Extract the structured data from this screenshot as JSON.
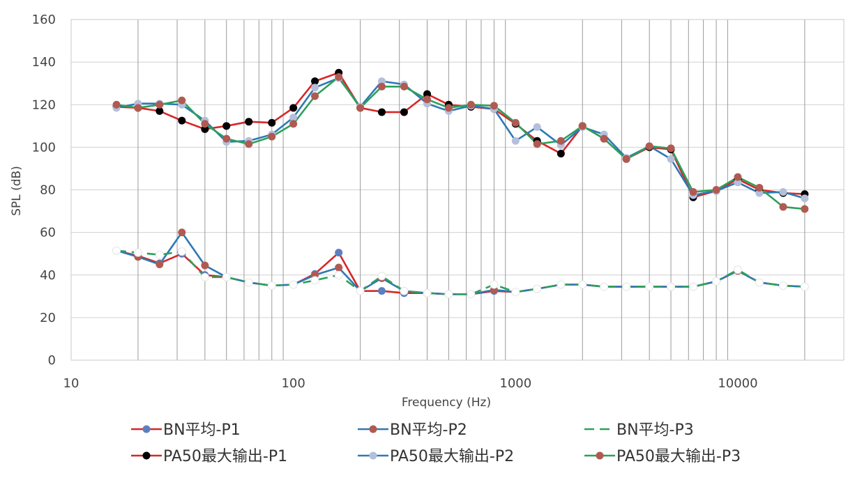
{
  "chart_data": {
    "type": "line",
    "x_scale": "log",
    "xlabel": "Frequency (Hz)",
    "ylabel": "SPL (dB)",
    "xlim": [
      10,
      30000
    ],
    "ylim": [
      0,
      160
    ],
    "x_ticks": [
      {
        "value": 10,
        "label": "10"
      },
      {
        "value": 100,
        "label": "100"
      },
      {
        "value": 1000,
        "label": "1000"
      },
      {
        "value": 10000,
        "label": "10000"
      }
    ],
    "y_ticks": [
      {
        "value": 0,
        "label": "0"
      },
      {
        "value": 20,
        "label": "20"
      },
      {
        "value": 40,
        "label": "40"
      },
      {
        "value": 60,
        "label": "60"
      },
      {
        "value": 80,
        "label": "80"
      },
      {
        "value": 100,
        "label": "100"
      },
      {
        "value": 120,
        "label": "120"
      },
      {
        "value": 140,
        "label": "140"
      },
      {
        "value": 160,
        "label": "160"
      }
    ],
    "grid": {
      "horizontal": true,
      "vertical_minor_log": true
    },
    "legend_position": "bottom",
    "x": [
      16,
      20,
      25,
      31.5,
      40,
      50,
      63,
      80,
      100,
      125,
      160,
      200,
      250,
      315,
      400,
      500,
      630,
      800,
      1000,
      1250,
      1600,
      2000,
      2500,
      3150,
      4000,
      5000,
      6300,
      8000,
      10000,
      12500,
      16000,
      20000
    ],
    "series": [
      {
        "name": "BN平均-P1",
        "line_color": "#d62728",
        "marker_color": "#5b7fbf",
        "dash": false,
        "values": [
          51.5,
          49,
          45.5,
          50,
          40,
          39,
          36.5,
          35,
          35.5,
          40.5,
          50.5,
          32.5,
          32.5,
          31.5,
          31.5,
          31,
          31,
          32.5,
          32,
          33.5,
          35.5,
          35.5,
          34.5,
          34.5,
          34.5,
          34.5,
          34.5,
          37,
          42,
          36.5,
          35,
          34.5
        ]
      },
      {
        "name": "BN平均-P2",
        "line_color": "#2e78b5",
        "marker_color": "#b05a52",
        "dash": false,
        "values": [
          51.5,
          48.5,
          45,
          60,
          44.5,
          39,
          36.5,
          35,
          35.5,
          40,
          43.5,
          32.5,
          38.5,
          32.5,
          31.5,
          31,
          31,
          33,
          32,
          33.5,
          35.5,
          35.5,
          34.5,
          34.5,
          34.5,
          34.5,
          34.5,
          37,
          42,
          36.5,
          35,
          34.5
        ]
      },
      {
        "name": "BN平均-P3",
        "line_color": "#2ca05a",
        "marker_color": null,
        "dash": true,
        "values": [
          51.5,
          50.5,
          49.5,
          51,
          39,
          39,
          36.5,
          35,
          35.5,
          37.5,
          40,
          32.5,
          39.5,
          32.5,
          31.5,
          31,
          31,
          35.5,
          32,
          33.5,
          35.5,
          35.5,
          34.5,
          34.5,
          34.5,
          34.5,
          34.5,
          37,
          42.5,
          36.5,
          35,
          34.5
        ]
      },
      {
        "name": "PA50最大输出-P1",
        "line_color": "#d62728",
        "marker_color": "#000000",
        "dash": false,
        "values": [
          119,
          118.5,
          117,
          112.5,
          108.5,
          110,
          112,
          111.5,
          118.5,
          131,
          135,
          118.5,
          116.5,
          116.5,
          125,
          120,
          119,
          118,
          111,
          103,
          97,
          110,
          104,
          94.5,
          100,
          99,
          76.5,
          79.5,
          85,
          80,
          78.5,
          78
        ]
      },
      {
        "name": "PA50最大输出-P2",
        "line_color": "#2e78b5",
        "marker_color": "#b4bfdc",
        "dash": false,
        "values": [
          118.5,
          120.5,
          120.5,
          120,
          112.5,
          102.5,
          103,
          106,
          114,
          128,
          132.5,
          119,
          131,
          129.5,
          120.5,
          117,
          119.5,
          118,
          103,
          109.5,
          101,
          109.5,
          106,
          95,
          100.5,
          94.5,
          77.5,
          79.5,
          83.5,
          78.5,
          79,
          76
        ]
      },
      {
        "name": "PA50最大输出-P3",
        "line_color": "#2ca05a",
        "marker_color": "#b05a52",
        "dash": false,
        "values": [
          120,
          118.5,
          120,
          122,
          111,
          104,
          101.5,
          105,
          111,
          124,
          133,
          118.5,
          128.5,
          128.5,
          122.5,
          118.5,
          120,
          119.5,
          111.5,
          101.5,
          103,
          110,
          104,
          94.5,
          100.5,
          99.5,
          79,
          80,
          86,
          81,
          72,
          71
        ]
      }
    ]
  }
}
